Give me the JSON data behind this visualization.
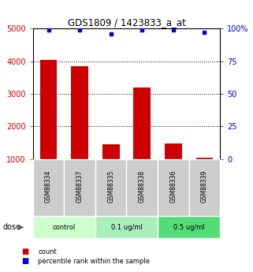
{
  "title": "GDS1809 / 1423833_a_at",
  "samples": [
    "GSM88334",
    "GSM88337",
    "GSM88335",
    "GSM88338",
    "GSM88336",
    "GSM88339"
  ],
  "counts": [
    4050,
    3850,
    1450,
    3200,
    1480,
    1050
  ],
  "percentiles": [
    99,
    99,
    96,
    99,
    99,
    97
  ],
  "ylim_left": [
    1000,
    5000
  ],
  "ylim_right": [
    0,
    100
  ],
  "yticks_left": [
    1000,
    2000,
    3000,
    4000,
    5000
  ],
  "yticks_right": [
    0,
    25,
    50,
    75,
    100
  ],
  "ytick_labels_right": [
    "0",
    "25",
    "50",
    "75",
    "100%"
  ],
  "groups": [
    {
      "label": "control",
      "indices": [
        0,
        1
      ],
      "color": "#ccffcc"
    },
    {
      "label": "0.1 ug/ml",
      "indices": [
        2,
        3
      ],
      "color": "#aaeebb"
    },
    {
      "label": "0.5 ug/ml",
      "indices": [
        4,
        5
      ],
      "color": "#55dd77"
    }
  ],
  "bar_color": "#cc0000",
  "dot_color": "#0000cc",
  "sample_box_color": "#cccccc",
  "sample_text_color": "#000000",
  "left_axis_color": "#cc0000",
  "right_axis_color": "#0000cc",
  "title_color": "#000000",
  "background_color": "#ffffff",
  "grid_color": "#000000",
  "dose_label": "dose",
  "legend_count": "count",
  "legend_percentile": "percentile rank within the sample"
}
